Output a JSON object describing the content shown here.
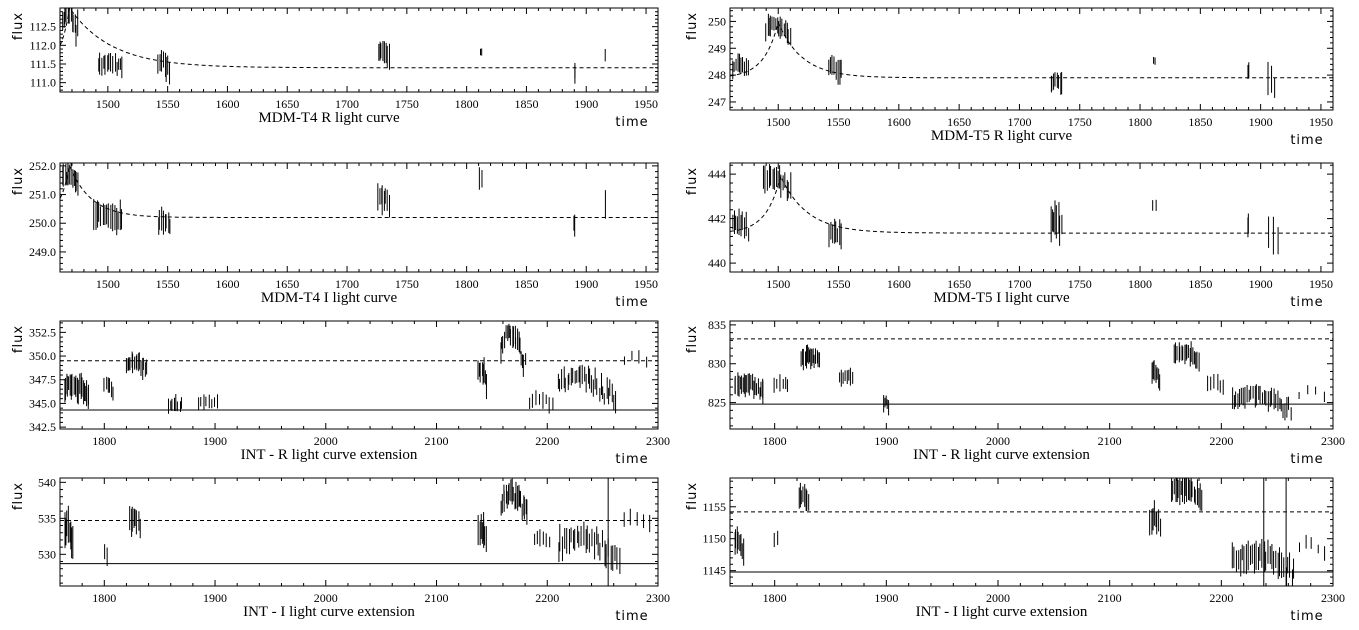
{
  "chart_data": [
    {
      "type": "scatter",
      "title": "MDM-T4 R light curve",
      "xlabel": "time",
      "ylabel": "flux",
      "xlim": [
        1460,
        1960
      ],
      "ylim": [
        110.75,
        113.0
      ],
      "xticks": [
        "1500",
        "1550",
        "1600",
        "1650",
        "1700",
        "1750",
        "1800",
        "1850",
        "1900",
        "1950"
      ],
      "yticks": [
        "111.0",
        "111.5",
        "112.0",
        "112.5"
      ],
      "grid": false,
      "clusters": [
        {
          "x": [
            1462,
            1475
          ],
          "y": [
            112.15,
            112.9
          ],
          "err": 0.3,
          "n": 12
        },
        {
          "x": [
            1492,
            1512
          ],
          "y": [
            111.3,
            111.55
          ],
          "err": 0.25,
          "n": 14
        },
        {
          "x": [
            1542,
            1552
          ],
          "y": [
            111.3,
            111.55
          ],
          "err": 0.3,
          "n": 8
        },
        {
          "x": [
            1726,
            1735
          ],
          "y": [
            111.6,
            111.8
          ],
          "err": 0.3,
          "n": 8
        },
        {
          "x": [
            1811,
            1813
          ],
          "y": [
            111.85,
            111.85
          ],
          "err": 0.1,
          "n": 2
        },
        {
          "x": [
            1890,
            1890
          ],
          "y": [
            111.3,
            111.3
          ],
          "err": 0.25,
          "n": 2
        },
        {
          "x": [
            1916,
            1916
          ],
          "y": [
            111.7,
            111.7
          ],
          "err": 0.15,
          "n": 1
        }
      ],
      "curves": [
        {
          "style": "dashed",
          "model": "decay",
          "x0": 1468,
          "peak": 113.0,
          "base": 111.4,
          "tau": 35,
          "rise": 8
        }
      ]
    },
    {
      "type": "scatter",
      "title": "MDM-T5 R light curve",
      "xlabel": "time",
      "ylabel": "flux",
      "xlim": [
        1460,
        1960
      ],
      "ylim": [
        246.7,
        250.5
      ],
      "xticks": [
        "1500",
        "1550",
        "1600",
        "1650",
        "1700",
        "1750",
        "1800",
        "1850",
        "1900",
        "1950"
      ],
      "yticks": [
        "247",
        "248",
        "249",
        "250"
      ],
      "grid": false,
      "clusters": [
        {
          "x": [
            1462,
            1475
          ],
          "y": [
            248.1,
            248.4
          ],
          "err": 0.3,
          "n": 10
        },
        {
          "x": [
            1490,
            1510
          ],
          "y": [
            249.2,
            249.9
          ],
          "err": 0.35,
          "n": 16
        },
        {
          "x": [
            1542,
            1552
          ],
          "y": [
            248.05,
            248.3
          ],
          "err": 0.4,
          "n": 8
        },
        {
          "x": [
            1726,
            1735
          ],
          "y": [
            247.6,
            247.8
          ],
          "err": 0.35,
          "n": 8
        },
        {
          "x": [
            1811,
            1813
          ],
          "y": [
            248.55,
            248.55
          ],
          "err": 0.15,
          "n": 2
        },
        {
          "x": [
            1890,
            1890
          ],
          "y": [
            248.1,
            248.1
          ],
          "err": 0.3,
          "n": 2
        },
        {
          "x": [
            1906,
            1912
          ],
          "y": [
            247.6,
            247.9
          ],
          "err": 0.6,
          "n": 3
        }
      ],
      "curves": [
        {
          "style": "dashed",
          "model": "decay",
          "x0": 1500,
          "peak": 249.95,
          "base": 247.9,
          "tau": 20,
          "rise": 12
        }
      ]
    },
    {
      "type": "scatter",
      "title": "MDM-T4 I light curve",
      "xlabel": "time",
      "ylabel": "flux",
      "xlim": [
        1460,
        1960
      ],
      "ylim": [
        248.3,
        252.1
      ],
      "xticks": [
        "1500",
        "1550",
        "1600",
        "1650",
        "1700",
        "1750",
        "1800",
        "1850",
        "1900",
        "1950"
      ],
      "yticks": [
        "249.0",
        "250.0",
        "251.0",
        "252.0"
      ],
      "grid": false,
      "clusters": [
        {
          "x": [
            1462,
            1475
          ],
          "y": [
            251.2,
            251.7
          ],
          "err": 0.35,
          "n": 12
        },
        {
          "x": [
            1488,
            1512
          ],
          "y": [
            250.0,
            250.4
          ],
          "err": 0.45,
          "n": 16
        },
        {
          "x": [
            1542,
            1552
          ],
          "y": [
            249.9,
            250.1
          ],
          "err": 0.35,
          "n": 8
        },
        {
          "x": [
            1726,
            1735
          ],
          "y": [
            250.4,
            250.9
          ],
          "err": 0.45,
          "n": 8
        },
        {
          "x": [
            1811,
            1813
          ],
          "y": [
            251.5,
            251.5
          ],
          "err": 0.35,
          "n": 2
        },
        {
          "x": [
            1890,
            1890
          ],
          "y": [
            250.0,
            250.0
          ],
          "err": 0.4,
          "n": 2
        },
        {
          "x": [
            1916,
            1916
          ],
          "y": [
            250.7,
            250.7
          ],
          "err": 0.5,
          "n": 1
        }
      ],
      "curves": [
        {
          "style": "dashed",
          "model": "decay",
          "x0": 1468,
          "peak": 252.0,
          "base": 250.2,
          "tau": 18,
          "rise": 8
        }
      ]
    },
    {
      "type": "scatter",
      "title": "MDM-T5 I light curve",
      "xlabel": "time",
      "ylabel": "flux",
      "xlim": [
        1460,
        1960
      ],
      "ylim": [
        439.6,
        444.5
      ],
      "xticks": [
        "1500",
        "1550",
        "1600",
        "1650",
        "1700",
        "1750",
        "1800",
        "1850",
        "1900",
        "1950"
      ],
      "yticks": [
        "440",
        "442",
        "444"
      ],
      "grid": false,
      "clusters": [
        {
          "x": [
            1462,
            1475
          ],
          "y": [
            441.3,
            441.8
          ],
          "err": 0.5,
          "n": 10
        },
        {
          "x": [
            1488,
            1510
          ],
          "y": [
            443.2,
            443.8
          ],
          "err": 0.55,
          "n": 16
        },
        {
          "x": [
            1542,
            1552
          ],
          "y": [
            441.2,
            441.4
          ],
          "err": 0.5,
          "n": 8
        },
        {
          "x": [
            1726,
            1735
          ],
          "y": [
            441.2,
            442.0
          ],
          "err": 0.7,
          "n": 8
        },
        {
          "x": [
            1811,
            1813
          ],
          "y": [
            442.6,
            442.6
          ],
          "err": 0.3,
          "n": 2
        },
        {
          "x": [
            1890,
            1890
          ],
          "y": [
            441.6,
            441.6
          ],
          "err": 0.6,
          "n": 2
        },
        {
          "x": [
            1906,
            1914
          ],
          "y": [
            440.9,
            441.3
          ],
          "err": 0.8,
          "n": 3
        }
      ],
      "curves": [
        {
          "style": "dashed",
          "model": "decay",
          "x0": 1502,
          "peak": 443.9,
          "base": 441.35,
          "tau": 22,
          "rise": 12
        }
      ]
    },
    {
      "type": "scatter",
      "title": "INT - R light curve extension",
      "xlabel": "time",
      "ylabel": "flux",
      "xlim": [
        1760,
        2300
      ],
      "ylim": [
        342.3,
        353.7
      ],
      "xticks": [
        "1800",
        "1900",
        "2000",
        "2100",
        "2200",
        "2300"
      ],
      "yticks": [
        "342.5",
        "345.0",
        "347.5",
        "350.0",
        "352.5"
      ],
      "grid": false,
      "clusters": [
        {
          "x": [
            1764,
            1786
          ],
          "y": [
            345.0,
            347.0
          ],
          "err": 1.2,
          "n": 22
        },
        {
          "x": [
            1800,
            1808
          ],
          "y": [
            346.0,
            347.0
          ],
          "err": 0.9,
          "n": 6
        },
        {
          "x": [
            1820,
            1838
          ],
          "y": [
            348.0,
            349.5
          ],
          "err": 1.0,
          "n": 16
        },
        {
          "x": [
            1858,
            1870
          ],
          "y": [
            344.8,
            344.9
          ],
          "err": 0.8,
          "n": 8
        },
        {
          "x": [
            1885,
            1902
          ],
          "y": [
            345.0,
            345.0
          ],
          "err": 0.8,
          "n": 8
        },
        {
          "x": [
            2138,
            2145
          ],
          "y": [
            346.5,
            348.5
          ],
          "err": 1.2,
          "n": 8
        },
        {
          "x": [
            2158,
            2180
          ],
          "y": [
            348.0,
            352.5
          ],
          "err": 1.0,
          "n": 20
        },
        {
          "x": [
            2184,
            2205
          ],
          "y": [
            344.5,
            345.5
          ],
          "err": 0.8,
          "n": 8
        },
        {
          "x": [
            2210,
            2262
          ],
          "y": [
            344.0,
            348.0
          ],
          "err": 1.0,
          "n": 32
        },
        {
          "x": [
            2270,
            2290
          ],
          "y": [
            349.2,
            350.0
          ],
          "err": 0.6,
          "n": 4
        }
      ],
      "curves": [
        {
          "style": "dashed",
          "model": "const",
          "y": 349.5
        },
        {
          "style": "solid",
          "model": "const",
          "y": 344.3
        }
      ]
    },
    {
      "type": "scatter",
      "title": "INT - R light curve extension",
      "xlabel": "time",
      "ylabel": "flux",
      "xlim": [
        1760,
        2300
      ],
      "ylim": [
        821.6,
        835.5
      ],
      "xticks": [
        "1800",
        "1900",
        "2000",
        "2100",
        "2200",
        "2300"
      ],
      "yticks": [
        "825",
        "830",
        "835"
      ],
      "grid": false,
      "clusters": [
        {
          "x": [
            1764,
            1790
          ],
          "y": [
            826.0,
            827.5
          ],
          "err": 1.3,
          "n": 22
        },
        {
          "x": [
            1800,
            1812
          ],
          "y": [
            827.0,
            827.5
          ],
          "err": 1.0,
          "n": 6
        },
        {
          "x": [
            1824,
            1840
          ],
          "y": [
            830.0,
            831.0
          ],
          "err": 1.3,
          "n": 16
        },
        {
          "x": [
            1858,
            1870
          ],
          "y": [
            828.0,
            828.5
          ],
          "err": 1.0,
          "n": 8
        },
        {
          "x": [
            1897,
            1902
          ],
          "y": [
            824.5,
            825.0
          ],
          "err": 1.0,
          "n": 5
        },
        {
          "x": [
            2138,
            2145
          ],
          "y": [
            827.5,
            829.0
          ],
          "err": 1.3,
          "n": 8
        },
        {
          "x": [
            2158,
            2180
          ],
          "y": [
            830.0,
            831.5
          ],
          "err": 1.2,
          "n": 18
        },
        {
          "x": [
            2188,
            2202
          ],
          "y": [
            826.5,
            827.5
          ],
          "err": 1.0,
          "n": 6
        },
        {
          "x": [
            2210,
            2262
          ],
          "y": [
            823.5,
            826.0
          ],
          "err": 1.2,
          "n": 32
        },
        {
          "x": [
            2270,
            2292
          ],
          "y": [
            825.5,
            826.5
          ],
          "err": 0.7,
          "n": 4
        }
      ],
      "curves": [
        {
          "style": "dashed",
          "model": "const",
          "y": 833.2
        },
        {
          "style": "solid",
          "model": "const",
          "y": 824.8
        }
      ]
    },
    {
      "type": "scatter",
      "title": "INT - I light curve extension",
      "xlabel": "time",
      "ylabel": "flux",
      "xlim": [
        1760,
        2300
      ],
      "ylim": [
        525.6,
        540.6
      ],
      "xticks": [
        "1800",
        "1900",
        "2000",
        "2100",
        "2200",
        "2300"
      ],
      "yticks": [
        "530",
        "535",
        "540"
      ],
      "grid": false,
      "clusters": [
        {
          "x": [
            1764,
            1772
          ],
          "y": [
            530.0,
            534.0
          ],
          "err": 2.2,
          "n": 8
        },
        {
          "x": [
            1800,
            1803
          ],
          "y": [
            529.5,
            530.5
          ],
          "err": 1.3,
          "n": 2
        },
        {
          "x": [
            1823,
            1832
          ],
          "y": [
            533.5,
            535.0
          ],
          "err": 1.8,
          "n": 8
        },
        {
          "x": [
            2138,
            2145
          ],
          "y": [
            531.0,
            533.5
          ],
          "err": 1.8,
          "n": 8
        },
        {
          "x": [
            2158,
            2182
          ],
          "y": [
            534.0,
            538.5
          ],
          "err": 1.6,
          "n": 22
        },
        {
          "x": [
            2188,
            2202
          ],
          "y": [
            531.5,
            532.5
          ],
          "err": 1.2,
          "n": 6
        },
        {
          "x": [
            2210,
            2265
          ],
          "y": [
            527.5,
            532.5
          ],
          "err": 1.6,
          "n": 30
        },
        {
          "x": [
            2270,
            2292
          ],
          "y": [
            534.0,
            535.0
          ],
          "err": 1.0,
          "n": 5
        }
      ],
      "vlines": [
        2255
      ],
      "curves": [
        {
          "style": "dashed",
          "model": "const",
          "y": 534.7
        },
        {
          "style": "solid",
          "model": "const",
          "y": 528.7
        }
      ]
    },
    {
      "type": "scatter",
      "title": "INT - I light curve extension",
      "xlabel": "time",
      "ylabel": "flux",
      "xlim": [
        1760,
        2300
      ],
      "ylim": [
        1142.6,
        1159.5
      ],
      "xticks": [
        "1800",
        "1900",
        "2000",
        "2100",
        "2200",
        "2300"
      ],
      "yticks": [
        "1145",
        "1150",
        "1155"
      ],
      "grid": false,
      "clusters": [
        {
          "x": [
            1764,
            1772
          ],
          "y": [
            1146.5,
            1149.5
          ],
          "err": 2.0,
          "n": 8
        },
        {
          "x": [
            1800,
            1803
          ],
          "y": [
            1150.0,
            1150.0
          ],
          "err": 1.0,
          "n": 2
        },
        {
          "x": [
            1822,
            1830
          ],
          "y": [
            1155.0,
            1157.0
          ],
          "err": 1.8,
          "n": 8
        },
        {
          "x": [
            2136,
            2145
          ],
          "y": [
            1151.0,
            1153.5
          ],
          "err": 1.8,
          "n": 8
        },
        {
          "x": [
            2155,
            2182
          ],
          "y": [
            1155.5,
            1158.0
          ],
          "err": 1.8,
          "n": 22
        },
        {
          "x": [
            2210,
            2265
          ],
          "y": [
            1143.5,
            1147.5
          ],
          "err": 2.0,
          "n": 32
        },
        {
          "x": [
            2270,
            2292
          ],
          "y": [
            1147.0,
            1149.5
          ],
          "err": 1.0,
          "n": 5
        }
      ],
      "vlines": [
        2238,
        2258
      ],
      "curves": [
        {
          "style": "dashed",
          "model": "const",
          "y": 1154.2
        },
        {
          "style": "solid",
          "model": "const",
          "y": 1144.8
        }
      ]
    }
  ]
}
